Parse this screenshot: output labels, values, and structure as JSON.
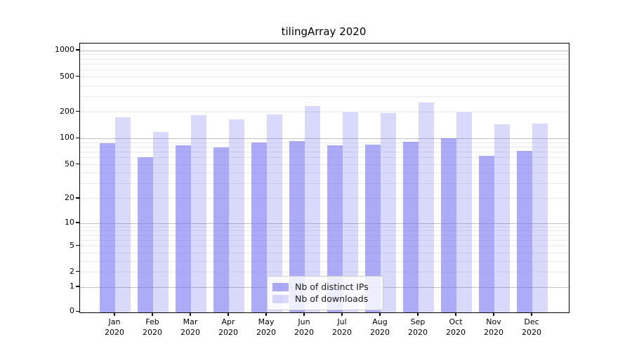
{
  "figure": {
    "title": "tilingArray 2020"
  },
  "chart_data": {
    "type": "bar",
    "title": "tilingArray 2020",
    "categories": [
      "Jan",
      "Feb",
      "Mar",
      "Apr",
      "May",
      "Jun",
      "Jul",
      "Aug",
      "Sep",
      "Oct",
      "Nov",
      "Dec"
    ],
    "year_label": "2020",
    "series": [
      {
        "name": "Nb of distinct IPs",
        "values": [
          89,
          61,
          84,
          79,
          90,
          93,
          84,
          85,
          91,
          101,
          63,
          72
        ]
      },
      {
        "name": "Nb of downloads",
        "values": [
          175,
          120,
          185,
          165,
          190,
          235,
          200,
          196,
          258,
          200,
          145,
          148
        ]
      }
    ],
    "xlabel": "",
    "ylabel": "",
    "y_ticks": [
      0,
      1,
      2,
      5,
      10,
      20,
      50,
      100,
      200,
      500,
      1000
    ],
    "y_grid_major": [
      1,
      10,
      100,
      1000
    ],
    "y_grid_minor": [
      2,
      3,
      4,
      5,
      6,
      7,
      8,
      9,
      20,
      30,
      40,
      50,
      60,
      70,
      80,
      90,
      200,
      300,
      400,
      500,
      600,
      700,
      800,
      900
    ],
    "y_scale": "log1p",
    "ylim": [
      0,
      1000
    ],
    "grid": true,
    "legend_position": "lower center"
  },
  "colors": {
    "bar_distinct_ips": "rgba(102,102,240,0.55)",
    "bar_downloads": "rgba(102,102,240,0.25)",
    "grid_minor": "#e9e9e9",
    "grid_major": "#c0c0c0",
    "spine": "#000000",
    "legend_border": "#cccccc",
    "legend_background": "rgba(255,255,255,0.8)"
  }
}
